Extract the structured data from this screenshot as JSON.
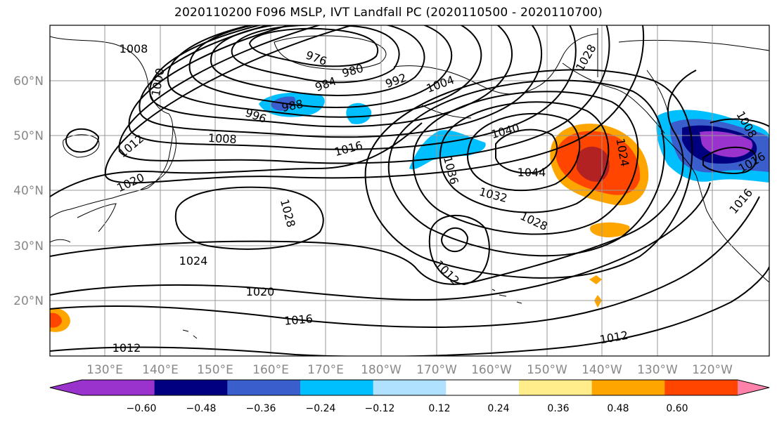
{
  "title": "2020110200 F096 MSLP, IVT Landfall PC (2020110500 - 2020110700)",
  "lat_ticks": [
    "60°N",
    "50°N",
    "40°N",
    "30°N",
    "20°N"
  ],
  "lon_ticks": [
    "130°E",
    "140°E",
    "150°E",
    "160°E",
    "170°E",
    "180°W",
    "170°W",
    "160°W",
    "150°W",
    "140°W",
    "130°W",
    "120°W"
  ],
  "colorbar": {
    "colors": [
      "#9a32cd",
      "#000080",
      "#3a5fcd",
      "#00bfff",
      "#b0e2ff",
      "#ffffff",
      "#ffec8b",
      "#ffa500",
      "#ff4500",
      "#b22222",
      "#ff82ab"
    ],
    "tick_labels": [
      "−0.60",
      "−0.48",
      "−0.36",
      "−0.24",
      "−0.12",
      "0.12",
      "0.24",
      "0.36",
      "0.48",
      "0.60"
    ]
  },
  "isobar_labels": [
    "1008",
    "1000",
    "976",
    "980",
    "992",
    "1004",
    "1028",
    "984",
    "988",
    "996",
    "1008",
    "1016",
    "1040",
    "1036",
    "1044",
    "1024",
    "1012",
    "1020",
    "1028",
    "1032",
    "1028",
    "1024",
    "1020",
    "1016",
    "1012",
    "1012",
    "1012",
    "1008",
    "1016",
    "1016"
  ]
}
